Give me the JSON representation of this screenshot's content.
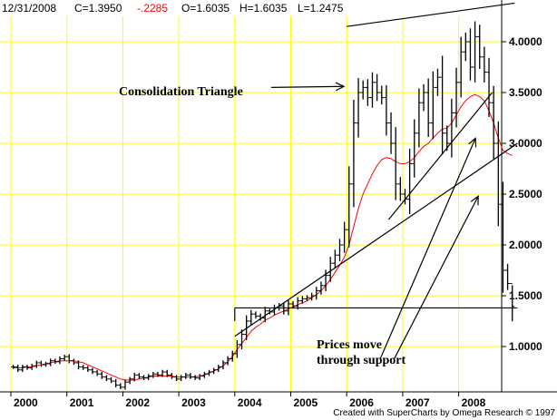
{
  "header": {
    "date": "12/31/2008",
    "close": "C=1.3950",
    "change": "-.2285",
    "open": "O=1.6035",
    "high": "H=1.6035",
    "low": "L=1.2475"
  },
  "credit": "Created with SuperCharts by Omega Research © 1997",
  "annotations": {
    "triangle": "Consolidation Triangle",
    "support_line1": "Prices move",
    "support_line2": "through support"
  },
  "colors": {
    "grid": "#ffff00",
    "price": "#000000",
    "moving_average": "#ff0000",
    "change_text": "#ff0000",
    "background": "#ffffff"
  },
  "chart_data": {
    "type": "ohlc",
    "interval": "monthly",
    "ylim": [
      0.5,
      4.25
    ],
    "xlim": [
      1999.5,
      2009.0
    ],
    "y_ticks": [
      "4.0000",
      "3.5000",
      "3.0000",
      "2.5000",
      "2.0000",
      "1.5000",
      "1.0000"
    ],
    "y_tick_values": [
      4.0,
      3.5,
      3.0,
      2.5,
      2.0,
      1.5,
      1.0
    ],
    "x_ticks": [
      "2000",
      "2001",
      "2002",
      "2003",
      "2004",
      "2005",
      "2006",
      "2007",
      "2008"
    ],
    "x_tick_values": [
      2000,
      2001,
      2002,
      2003,
      2004,
      2005,
      2006,
      2007,
      2008
    ],
    "grid": true,
    "series": [
      {
        "closes": [
          0.8,
          0.77,
          0.8,
          0.79,
          0.81,
          0.84,
          0.82,
          0.83,
          0.86,
          0.85,
          0.88,
          0.9,
          0.86,
          0.84,
          0.8,
          0.79,
          0.77,
          0.75,
          0.73,
          0.7,
          0.68,
          0.66,
          0.62,
          0.6,
          0.65,
          0.68,
          0.72,
          0.7,
          0.69,
          0.71,
          0.73,
          0.72,
          0.75,
          0.72,
          0.7,
          0.68,
          0.7,
          0.72,
          0.7,
          0.69,
          0.71,
          0.73,
          0.75,
          0.77,
          0.8,
          0.84,
          0.88,
          0.93,
          1.02,
          1.12,
          1.25,
          1.32,
          1.3,
          1.28,
          1.35,
          1.34,
          1.38,
          1.4,
          1.35,
          1.42,
          1.4,
          1.45,
          1.47,
          1.48,
          1.5,
          1.55,
          1.6,
          1.7,
          1.82,
          1.9,
          2.0,
          2.15,
          2.6,
          3.2,
          3.5,
          3.55,
          3.45,
          3.6,
          3.5,
          3.45,
          3.2,
          3.0,
          2.6,
          2.5,
          2.45,
          2.8,
          3.1,
          3.4,
          3.5,
          3.2,
          3.55,
          3.65,
          3.1,
          3.0,
          3.3,
          3.6,
          3.9,
          4.0,
          3.75,
          4.05,
          3.85,
          3.7,
          3.4,
          3.0,
          2.4,
          1.75,
          1.62,
          1.395
        ],
        "ohlc_ranges": [
          {
            "high": 0.85,
            "low": 0.74
          },
          {
            "high": 0.83,
            "low": 0.72
          },
          {
            "high": 0.86,
            "low": 0.75
          },
          {
            "high": 0.84,
            "low": 0.74
          },
          {
            "high": 0.87,
            "low": 0.76
          },
          {
            "high": 0.9,
            "low": 0.79
          }
        ],
        "name": ""
      },
      {
        "name": "",
        "ma_values": [
          0.79,
          0.79,
          0.79,
          0.8,
          0.8,
          0.81,
          0.82,
          0.83,
          0.84,
          0.85,
          0.86,
          0.86,
          0.86,
          0.86,
          0.85,
          0.84,
          0.82,
          0.8,
          0.78,
          0.76,
          0.74,
          0.72,
          0.7,
          0.68,
          0.67,
          0.67,
          0.67,
          0.68,
          0.69,
          0.7,
          0.71,
          0.71,
          0.71,
          0.71,
          0.71,
          0.7,
          0.7,
          0.7,
          0.7,
          0.7,
          0.71,
          0.72,
          0.74,
          0.76,
          0.78,
          0.81,
          0.85,
          0.9,
          0.97,
          1.03,
          1.09,
          1.15,
          1.19,
          1.22,
          1.26,
          1.28,
          1.31,
          1.33,
          1.35,
          1.37,
          1.39,
          1.41,
          1.43,
          1.45,
          1.48,
          1.51,
          1.55,
          1.6,
          1.66,
          1.73,
          1.8,
          1.88,
          2.0,
          2.18,
          2.36,
          2.5,
          2.6,
          2.7,
          2.78,
          2.84,
          2.86,
          2.85,
          2.82,
          2.8,
          2.8,
          2.82,
          2.86,
          2.92,
          2.97,
          3.0,
          3.05,
          3.1,
          3.14,
          3.15,
          3.2,
          3.28,
          3.36,
          3.42,
          3.46,
          3.48,
          3.46,
          3.42,
          3.32,
          3.2,
          3.05,
          2.93,
          2.9,
          2.88
        ]
      }
    ],
    "trendlines": [
      {
        "x": [
          2006.0,
          2009.0
        ],
        "y": [
          4.15,
          4.38
        ]
      },
      {
        "x": [
          2006.75,
          2008.6
        ],
        "y": [
          2.25,
          3.5
        ]
      },
      {
        "x": [
          2004.0,
          2009.05
        ],
        "y": [
          1.1,
          3.0
        ]
      },
      {
        "x": [
          2004.0,
          2009.05
        ],
        "y": [
          1.38,
          1.38
        ]
      }
    ],
    "arrows": [
      {
        "x": [
          2004.65,
          2005.95
        ],
        "y": [
          3.55,
          3.56
        ]
      },
      {
        "x": [
          2006.6,
          2008.3
        ],
        "y": [
          0.88,
          3.05
        ]
      },
      {
        "x": [
          2006.85,
          2008.35
        ],
        "y": [
          0.88,
          2.48
        ]
      }
    ]
  }
}
